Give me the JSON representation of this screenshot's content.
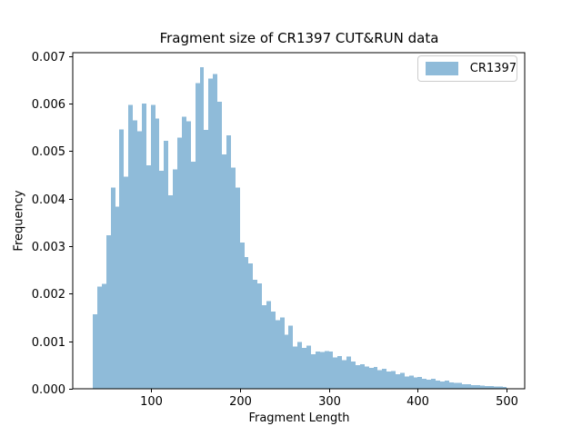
{
  "figure": {
    "background": "#ffffff"
  },
  "chart_data": {
    "type": "bar",
    "subtype": "histogram",
    "title": "Fragment size of CR1397 CUT&RUN data",
    "xlabel": "Fragment Length",
    "ylabel": "Frequency",
    "legend": {
      "position": "upper right",
      "entries": [
        {
          "label": "CR1397",
          "color": "#8fbbd9"
        }
      ]
    },
    "bar_color": "#8fbbd9",
    "grid": false,
    "bin_start": 35,
    "bin_width": 5,
    "frequencies": [
      0.00157,
      0.00215,
      0.00221,
      0.00323,
      0.00423,
      0.00383,
      0.00546,
      0.00446,
      0.00597,
      0.00565,
      0.00542,
      0.006,
      0.0047,
      0.00597,
      0.00568,
      0.00459,
      0.00522,
      0.00407,
      0.00461,
      0.00528,
      0.00572,
      0.00563,
      0.00478,
      0.00643,
      0.00676,
      0.00545,
      0.00653,
      0.00662,
      0.00604,
      0.00493,
      0.00533,
      0.00465,
      0.00423,
      0.00308,
      0.00277,
      0.00264,
      0.00229,
      0.00222,
      0.00176,
      0.00184,
      0.00162,
      0.00144,
      0.0015,
      0.00114,
      0.00133,
      0.00089,
      0.00098,
      0.00086,
      0.00091,
      0.00073,
      0.00078,
      0.00077,
      0.00079,
      0.00078,
      0.00066,
      0.00069,
      0.0006,
      0.00068,
      0.00057,
      0.0005,
      0.00052,
      0.00047,
      0.00044,
      0.00046,
      0.00039,
      0.00042,
      0.00036,
      0.00037,
      0.00031,
      0.00033,
      0.00026,
      0.00028,
      0.00024,
      0.00025,
      0.00021,
      0.00019,
      0.00021,
      0.00017,
      0.00015,
      0.00017,
      0.00013,
      0.00012,
      0.00012,
      0.0001,
      0.0001,
      8e-05,
      8e-05,
      7e-05,
      6e-05,
      6e-05,
      5e-05,
      5e-05,
      4e-05
    ],
    "x_ticks": [
      100,
      200,
      300,
      400,
      500
    ],
    "y_ticks": [
      "0.000",
      "0.001",
      "0.002",
      "0.003",
      "0.004",
      "0.005",
      "0.006",
      "0.007"
    ],
    "xlim": [
      12.5,
      520
    ],
    "ylim": [
      0,
      0.00707
    ]
  }
}
